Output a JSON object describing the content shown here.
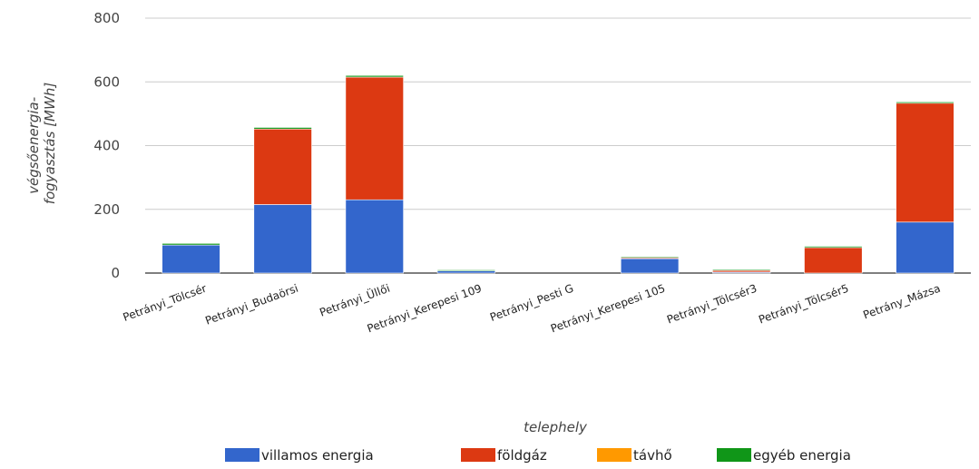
{
  "chart_data": {
    "type": "bar",
    "stacked": true,
    "xlabel": "telephely",
    "ylabel_lines": [
      "végsőenergia-",
      "fogyasztás [MWh]"
    ],
    "ylim": [
      0,
      800
    ],
    "yticks": [
      0,
      200,
      400,
      600,
      800
    ],
    "grid": true,
    "legend_position": "bottom",
    "categories": [
      "Petrányi_Tölcsér",
      "Petrányi_Budaörsi",
      "Petrányi_Üllői",
      "Petrányi_Kerepesi 109",
      "Petrányi_Pesti G",
      "Petrányi_Kerepesi 105",
      "Petrányi_Tölcsér3",
      "Petrányi_Tölcsér5",
      "Petrány_Mázsa"
    ],
    "series": [
      {
        "name": "villamos energia",
        "color": "#3366cc",
        "values": [
          88,
          215,
          230,
          7,
          0,
          45,
          3,
          0,
          160
        ]
      },
      {
        "name": "földgáz",
        "color": "#dc3912",
        "values": [
          0,
          237,
          385,
          0,
          0,
          3,
          5,
          80,
          373
        ]
      },
      {
        "name": "távhő",
        "color": "#ff9900",
        "values": [
          0,
          0,
          0,
          0,
          0,
          0,
          0,
          0,
          0
        ]
      },
      {
        "name": "egyéb energia",
        "color": "#109618",
        "values": [
          5,
          5,
          5,
          3,
          0,
          3,
          3,
          4,
          4
        ]
      }
    ]
  }
}
